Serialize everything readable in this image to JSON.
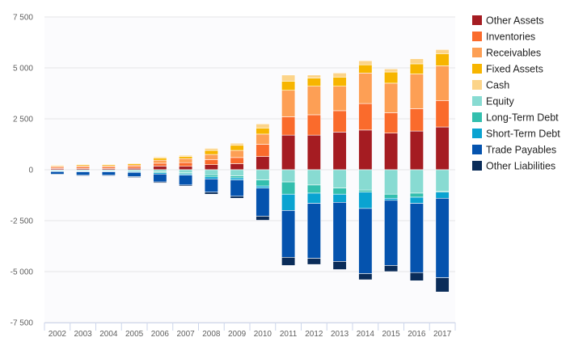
{
  "chart_data": {
    "type": "bar",
    "stacked": true,
    "categories": [
      "2002",
      "2003",
      "2004",
      "2005",
      "2006",
      "2007",
      "2008",
      "2009",
      "2010",
      "2011",
      "2012",
      "2013",
      "2014",
      "2015",
      "2016",
      "2017"
    ],
    "ylim": [
      -7500,
      7500
    ],
    "yticks": [
      7500,
      5000,
      2500,
      0,
      -2500,
      -5000,
      -7500
    ],
    "ytick_labels": [
      "7 500",
      "5 000",
      "2 500",
      "0",
      "-2 500",
      "-5 000",
      "-7 500"
    ],
    "grid": true,
    "legend_position": "right",
    "series": [
      {
        "name": "Other Assets",
        "color": "#a51c22",
        "values": [
          60,
          60,
          60,
          70,
          180,
          170,
          250,
          300,
          650,
          1700,
          1700,
          1850,
          1950,
          1800,
          1900,
          2100
        ]
      },
      {
        "name": "Inventories",
        "color": "#fa6b2c",
        "values": [
          60,
          70,
          70,
          80,
          140,
          180,
          250,
          300,
          600,
          900,
          1000,
          1050,
          1300,
          1000,
          1100,
          1300
        ]
      },
      {
        "name": "Receivables",
        "color": "#fd9f55",
        "values": [
          60,
          70,
          70,
          80,
          150,
          200,
          250,
          350,
          500,
          1300,
          1400,
          1200,
          1500,
          1450,
          1700,
          1700
        ]
      },
      {
        "name": "Fixed Assets",
        "color": "#f7b500",
        "values": [
          40,
          50,
          50,
          60,
          100,
          100,
          200,
          250,
          300,
          450,
          400,
          450,
          400,
          550,
          500,
          600
        ]
      },
      {
        "name": "Cash",
        "color": "#fcd489",
        "values": [
          20,
          30,
          30,
          40,
          60,
          60,
          100,
          100,
          200,
          300,
          150,
          200,
          200,
          150,
          250,
          200
        ]
      },
      {
        "name": "Equity",
        "color": "#88dbd2",
        "values": [
          -40,
          -50,
          -50,
          -60,
          -100,
          -150,
          -250,
          -300,
          -500,
          -600,
          -750,
          -900,
          -1000,
          -1200,
          -1150,
          -1050
        ]
      },
      {
        "name": "Long-Term Debt",
        "color": "#33bfae",
        "values": [
          -20,
          -20,
          -20,
          -30,
          -50,
          -50,
          -100,
          -100,
          -300,
          -600,
          -400,
          -300,
          -100,
          -200,
          -200,
          -50
        ]
      },
      {
        "name": "Short-Term Debt",
        "color": "#0aa3d1",
        "values": [
          -30,
          -30,
          -30,
          -40,
          -60,
          -60,
          -100,
          -100,
          -100,
          -800,
          -500,
          -400,
          -800,
          -100,
          -300,
          -300
        ]
      },
      {
        "name": "Trade Payables",
        "color": "#0553ae",
        "values": [
          -130,
          -170,
          -170,
          -210,
          -390,
          -490,
          -650,
          -800,
          -1380,
          -2300,
          -2700,
          -2900,
          -3200,
          -3200,
          -3400,
          -3900
        ]
      },
      {
        "name": "Other Liabilities",
        "color": "#0a2c59",
        "values": [
          -30,
          -30,
          -30,
          -40,
          -50,
          -50,
          -100,
          -100,
          -200,
          -400,
          -300,
          -400,
          -300,
          -300,
          -400,
          -700
        ]
      }
    ]
  }
}
